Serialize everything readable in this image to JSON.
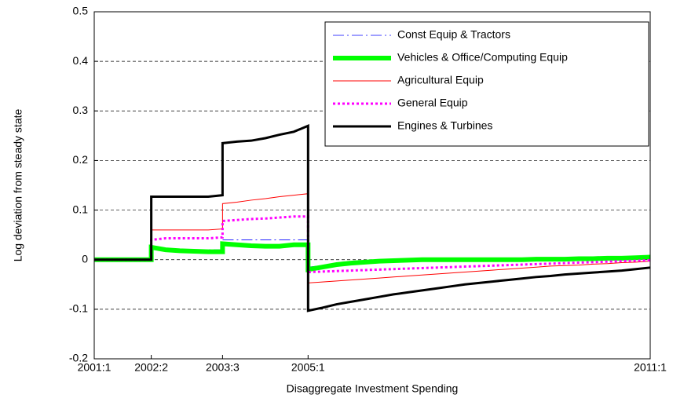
{
  "chart_data": {
    "type": "line",
    "xlabel": "Disaggregate Investment Spending",
    "ylabel": "Log deviation from steady state",
    "x": [
      1,
      5,
      5,
      6,
      7,
      8,
      9,
      10,
      10,
      11,
      12,
      13,
      14,
      15,
      16,
      16,
      17,
      18,
      19,
      20,
      21,
      22,
      23,
      24,
      25,
      26,
      27,
      28,
      29,
      30,
      31,
      32,
      33,
      34,
      35,
      36,
      37,
      38,
      39,
      40
    ],
    "xlim": [
      1,
      40
    ],
    "xticks": [
      {
        "value": 1,
        "label": "2001:1"
      },
      {
        "value": 5,
        "label": "2002:2"
      },
      {
        "value": 10,
        "label": "2003:3"
      },
      {
        "value": 16,
        "label": "2005:1"
      },
      {
        "value": 40,
        "label": "2011:1"
      }
    ],
    "ylim": [
      -0.2,
      0.5
    ],
    "yticks": [
      -0.2,
      -0.1,
      0,
      0.1,
      0.2,
      0.3,
      0.4,
      0.5
    ],
    "grid": true,
    "legend": "upper right",
    "series": [
      {
        "name": "Const Equip & Tractors",
        "color": "#0000ff",
        "width": 0.8,
        "dash": "14 4 2 4",
        "values": [
          0,
          0,
          0.025,
          0.022,
          0.02,
          0.02,
          0.02,
          0.02,
          0.04,
          0.04,
          0.04,
          0.04,
          0.04,
          0.04,
          0.04,
          -0.015,
          -0.012,
          -0.01,
          -0.008,
          -0.006,
          -0.005,
          -0.004,
          -0.003,
          -0.002,
          -0.001,
          0,
          0,
          0,
          0,
          0,
          0,
          0,
          0,
          0,
          0,
          0,
          0,
          0,
          0,
          0
        ]
      },
      {
        "name": "Vehicles & Office/Computing Equip",
        "color": "#00ff00",
        "width": 6,
        "dash": "none",
        "values": [
          0,
          0,
          0.025,
          0.02,
          0.018,
          0.017,
          0.016,
          0.016,
          0.032,
          0.03,
          0.028,
          0.027,
          0.027,
          0.03,
          0.03,
          -0.02,
          -0.015,
          -0.01,
          -0.007,
          -0.005,
          -0.003,
          -0.002,
          -0.001,
          0,
          0,
          0,
          0,
          0,
          0,
          0,
          0,
          0.001,
          0.001,
          0.001,
          0.002,
          0.002,
          0.003,
          0.003,
          0.004,
          0.005
        ]
      },
      {
        "name": "Agricultural Equip",
        "color": "#ff0000",
        "width": 1,
        "dash": "none",
        "values": [
          0,
          0,
          0.06,
          0.06,
          0.06,
          0.06,
          0.06,
          0.062,
          0.113,
          0.116,
          0.12,
          0.123,
          0.127,
          0.13,
          0.133,
          -0.047,
          -0.045,
          -0.043,
          -0.041,
          -0.039,
          -0.037,
          -0.035,
          -0.033,
          -0.031,
          -0.029,
          -0.027,
          -0.025,
          -0.023,
          -0.021,
          -0.019,
          -0.017,
          -0.015,
          -0.013,
          -0.012,
          -0.011,
          -0.009,
          -0.008,
          -0.006,
          -0.005,
          -0.003
        ]
      },
      {
        "name": "General Equip",
        "color": "#ff00ff",
        "width": 3,
        "dash": "3 3",
        "values": [
          0,
          0,
          0.04,
          0.043,
          0.043,
          0.043,
          0.043,
          0.045,
          0.078,
          0.08,
          0.082,
          0.083,
          0.085,
          0.087,
          0.087,
          -0.025,
          -0.024,
          -0.023,
          -0.022,
          -0.021,
          -0.02,
          -0.019,
          -0.018,
          -0.017,
          -0.016,
          -0.015,
          -0.014,
          -0.013,
          -0.012,
          -0.011,
          -0.01,
          -0.009,
          -0.008,
          -0.007,
          -0.006,
          -0.005,
          -0.004,
          -0.003,
          -0.002,
          -0.001
        ]
      },
      {
        "name": "Engines & Turbines",
        "color": "#000000",
        "width": 3,
        "dash": "none",
        "values": [
          0,
          0,
          0.127,
          0.127,
          0.127,
          0.127,
          0.127,
          0.13,
          0.235,
          0.238,
          0.24,
          0.245,
          0.252,
          0.258,
          0.27,
          -0.103,
          -0.097,
          -0.09,
          -0.085,
          -0.08,
          -0.075,
          -0.07,
          -0.066,
          -0.062,
          -0.058,
          -0.054,
          -0.05,
          -0.047,
          -0.044,
          -0.041,
          -0.038,
          -0.035,
          -0.033,
          -0.03,
          -0.028,
          -0.026,
          -0.024,
          -0.022,
          -0.019,
          -0.016
        ]
      }
    ]
  }
}
